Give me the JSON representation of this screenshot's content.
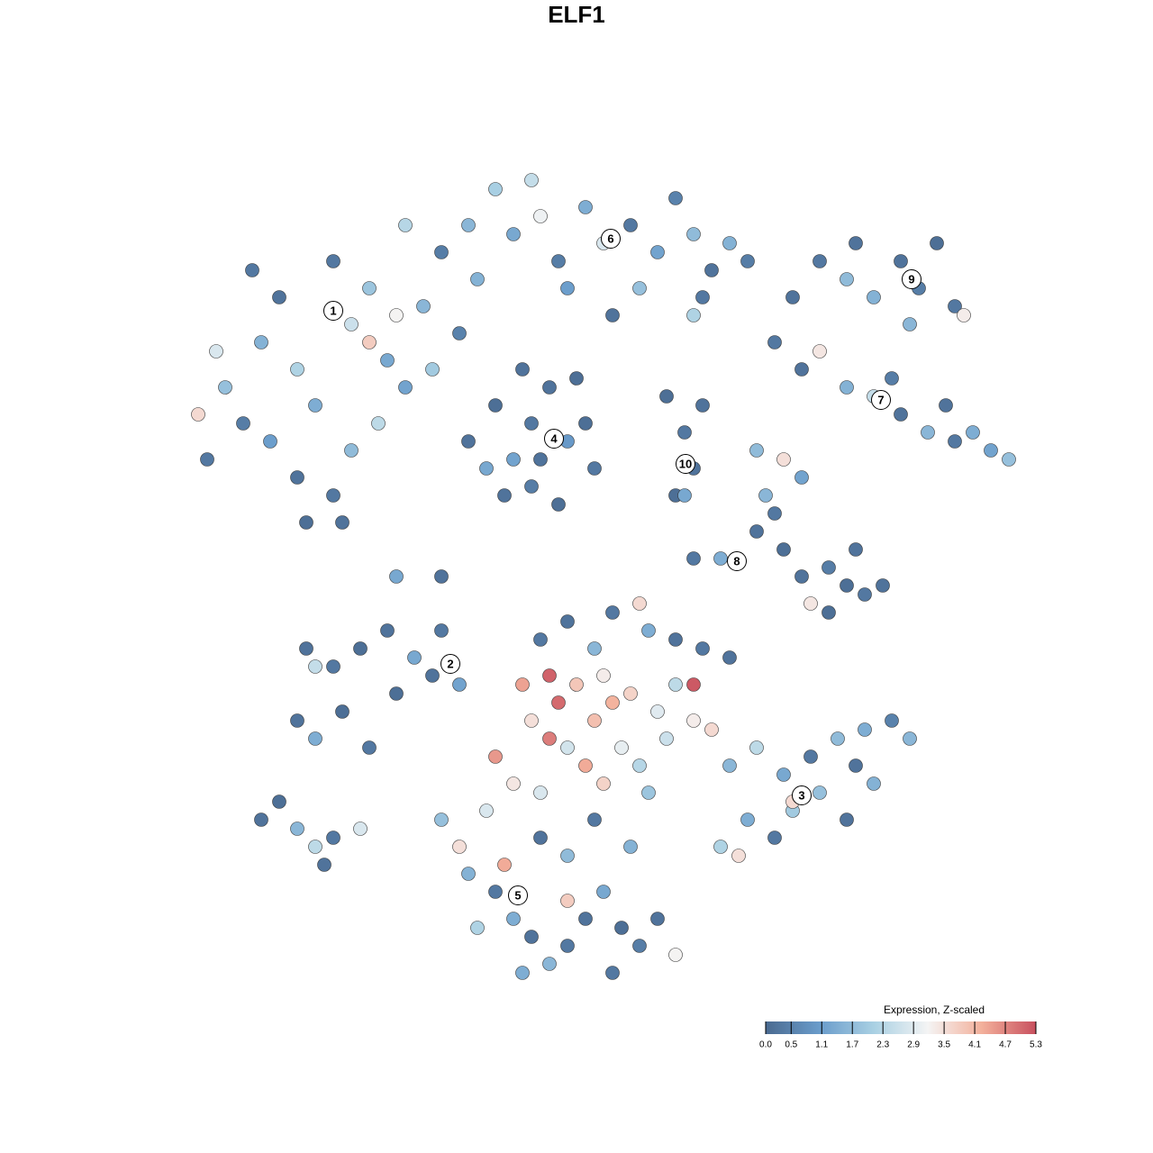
{
  "chart_data": {
    "type": "scatter",
    "title": "ELF1",
    "xlim": [
      0,
      103
    ],
    "ylim": [
      0,
      98
    ],
    "x": [
      8,
      10,
      12,
      14,
      16,
      18,
      20,
      22,
      24,
      26,
      28,
      30,
      32,
      34,
      18,
      22,
      24,
      27,
      30,
      19,
      23,
      9,
      7,
      13,
      36,
      38,
      26,
      29,
      33,
      15,
      37,
      40,
      42,
      45,
      47,
      50,
      52,
      55,
      58,
      60,
      62,
      64,
      66,
      68,
      63,
      44,
      56,
      53,
      48,
      62,
      37,
      40,
      42,
      44,
      46,
      48,
      50,
      41,
      44,
      47,
      39,
      45,
      51,
      43,
      49,
      59,
      61,
      62,
      60,
      63,
      61,
      73,
      76,
      79,
      82,
      85,
      87,
      89,
      91,
      86,
      80,
      92,
      71,
      74,
      76,
      79,
      82,
      85,
      88,
      91,
      93,
      95,
      97,
      84,
      90,
      69,
      72,
      74,
      70,
      69,
      71,
      72,
      74,
      77,
      79,
      81,
      83,
      80,
      62,
      65,
      75,
      77,
      19,
      22,
      25,
      28,
      31,
      34,
      18,
      20,
      23,
      26,
      20,
      33,
      36,
      29,
      45,
      48,
      51,
      53,
      57,
      60,
      63,
      66,
      56,
      52,
      43,
      46,
      47,
      49,
      51,
      53,
      55,
      58,
      60,
      62,
      46,
      44,
      48,
      50,
      54,
      56,
      59,
      64,
      62,
      40,
      42,
      45,
      52,
      57,
      66,
      69,
      72,
      75,
      78,
      81,
      84,
      86,
      73,
      76,
      79,
      82,
      71,
      68,
      65,
      73,
      67,
      80,
      34,
      36,
      39,
      37,
      40,
      42,
      44,
      46,
      48,
      50,
      52,
      54,
      56,
      58,
      60,
      41,
      45,
      48,
      51,
      55,
      43,
      48,
      38,
      53,
      14,
      16,
      18,
      20,
      22,
      25,
      21,
      29,
      34
    ],
    "y": [
      62,
      70,
      66,
      75,
      80,
      72,
      68,
      84,
      77,
      81,
      73,
      88,
      79,
      85,
      60,
      58,
      63,
      66,
      70,
      55,
      55,
      74,
      67,
      83,
      76,
      82,
      75,
      78,
      72,
      64,
      88,
      92,
      87,
      89,
      84,
      90,
      86,
      88,
      85,
      91,
      87,
      83,
      86,
      84,
      80,
      93,
      81,
      78,
      81,
      78,
      64,
      68,
      62,
      66,
      70,
      64,
      66,
      58,
      59,
      57,
      61,
      62,
      61,
      72,
      71,
      69,
      65,
      61,
      58,
      68,
      58,
      80,
      84,
      82,
      80,
      84,
      81,
      86,
      79,
      77,
      86,
      78,
      75,
      72,
      74,
      70,
      69,
      67,
      65,
      64,
      65,
      63,
      62,
      71,
      68,
      63,
      62,
      60,
      58,
      54,
      56,
      52,
      49,
      50,
      48,
      47,
      48,
      52,
      51,
      51,
      46,
      45,
      41,
      39,
      41,
      43,
      40,
      43,
      33,
      31,
      34,
      30,
      39,
      38,
      37,
      36,
      42,
      44,
      41,
      45,
      43,
      42,
      41,
      40,
      46,
      38,
      37,
      38,
      35,
      37,
      33,
      35,
      36,
      34,
      37,
      33,
      31,
      33,
      30,
      28,
      30,
      28,
      31,
      32,
      37,
      29,
      26,
      25,
      26,
      25,
      28,
      30,
      27,
      29,
      31,
      32,
      33,
      31,
      23,
      25,
      22,
      26,
      20,
      22,
      19,
      24,
      18,
      28,
      22,
      19,
      23,
      16,
      14,
      11,
      9,
      6,
      8,
      11,
      14,
      10,
      8,
      11,
      7,
      17,
      20,
      18,
      22,
      19,
      5,
      13,
      10,
      5,
      22,
      24,
      21,
      19,
      20,
      21,
      17,
      49,
      49
    ],
    "values": [
      0.3,
      1.8,
      0.4,
      1.5,
      0.2,
      2.2,
      1.4,
      0.3,
      2.6,
      1.9,
      1.3,
      2.3,
      1.6,
      0.4,
      0.2,
      0.3,
      1.7,
      2.4,
      1.2,
      0.1,
      0.2,
      2.8,
      3.6,
      0.3,
      0.5,
      1.5,
      3.8,
      3.2,
      2.0,
      1.1,
      1.6,
      2.1,
      1.3,
      3.1,
      0.4,
      1.4,
      2.8,
      0.3,
      1.2,
      0.5,
      1.7,
      0.2,
      1.5,
      0.4,
      0.3,
      2.5,
      1.8,
      0.2,
      1.1,
      2.2,
      0.2,
      0.1,
      1.2,
      0.3,
      0.2,
      1.0,
      0.1,
      0.2,
      0.4,
      0.1,
      1.3,
      0.2,
      0.3,
      0.2,
      0.1,
      0.1,
      0.3,
      0.2,
      0.1,
      0.2,
      1.3,
      0.2,
      0.3,
      1.7,
      1.5,
      0.2,
      0.4,
      0.1,
      0.3,
      1.6,
      0.2,
      3.3,
      0.3,
      0.2,
      3.4,
      1.5,
      2.5,
      0.2,
      1.6,
      0.3,
      1.4,
      1.2,
      1.8,
      0.4,
      0.2,
      1.7,
      3.5,
      1.2,
      1.6,
      0.2,
      0.3,
      0.1,
      0.2,
      0.4,
      0.1,
      0.3,
      0.2,
      0.2,
      0.3,
      1.4,
      3.4,
      0.1,
      0.2,
      0.3,
      0.1,
      0.2,
      1.3,
      0.3,
      0.2,
      1.4,
      0.1,
      0.3,
      2.5,
      0.2,
      1.2,
      0.1,
      0.3,
      0.2,
      1.6,
      0.3,
      1.4,
      0.2,
      0.3,
      0.2,
      3.6,
      3.3,
      4.4,
      5.1,
      5.0,
      3.9,
      4.0,
      4.2,
      3.7,
      2.9,
      2.4,
      3.3,
      4.8,
      3.5,
      2.7,
      4.3,
      3.0,
      2.3,
      2.6,
      3.6,
      5.2,
      4.5,
      3.4,
      2.8,
      3.7,
      1.9,
      1.6,
      2.4,
      1.3,
      0.3,
      1.7,
      1.4,
      0.5,
      1.6,
      2.0,
      1.8,
      0.2,
      1.5,
      0.3,
      1.4,
      2.2,
      3.6,
      3.5,
      0.2,
      1.8,
      3.5,
      2.8,
      1.5,
      0.3,
      1.4,
      0.2,
      1.6,
      0.3,
      0.2,
      1.3,
      0.1,
      0.4,
      0.2,
      3.2,
      4.3,
      0.2,
      1.7,
      0.3,
      1.5,
      1.4,
      3.8,
      2.2,
      0.3,
      0.2,
      0.1,
      1.6,
      2.4,
      0.3,
      2.8,
      0.2,
      1.3,
      0.2
    ],
    "cluster_labels": [
      {
        "label": "1",
        "x": 22,
        "y": 78.5
      },
      {
        "label": "6",
        "x": 52.8,
        "y": 86.5
      },
      {
        "label": "9",
        "x": 86.2,
        "y": 82
      },
      {
        "label": "4",
        "x": 46.5,
        "y": 64.3
      },
      {
        "label": "10",
        "x": 61.1,
        "y": 61.5
      },
      {
        "label": "7",
        "x": 82.8,
        "y": 68.6
      },
      {
        "label": "8",
        "x": 66.8,
        "y": 50.7
      },
      {
        "label": "2",
        "x": 35,
        "y": 39.3
      },
      {
        "label": "3",
        "x": 74,
        "y": 24.7
      },
      {
        "label": "5",
        "x": 42.5,
        "y": 13.6
      }
    ],
    "colorbar": {
      "title": "Expression, Z-scaled",
      "lim": [
        0,
        5.3
      ],
      "ticks": [
        {
          "value": 0,
          "label": "0.0"
        },
        0.5,
        1.1,
        1.7,
        2.3,
        2.9,
        3.5,
        4.1,
        4.7,
        5.3
      ],
      "colors": [
        "#4a6a90",
        "#6a9ccb",
        "#a9d0e3",
        "#f4f4f4",
        "#f3b09b",
        "#c8505e"
      ]
    }
  }
}
